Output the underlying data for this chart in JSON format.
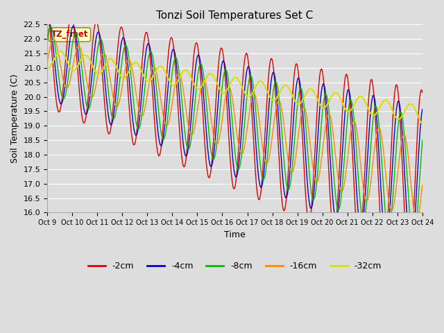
{
  "title": "Tonzi Soil Temperatures Set C",
  "xlabel": "Time",
  "ylabel": "Soil Temperature (C)",
  "ylim": [
    16.0,
    22.5
  ],
  "yticks": [
    16.0,
    16.5,
    17.0,
    17.5,
    18.0,
    18.5,
    19.0,
    19.5,
    20.0,
    20.5,
    21.0,
    21.5,
    22.0,
    22.5
  ],
  "series": {
    "-2cm": {
      "color": "#dd0000",
      "linewidth": 1.0
    },
    "-4cm": {
      "color": "#0000cc",
      "linewidth": 1.0
    },
    "-8cm": {
      "color": "#00bb00",
      "linewidth": 1.0
    },
    "-16cm": {
      "color": "#ff8800",
      "linewidth": 1.0
    },
    "-32cm": {
      "color": "#dddd00",
      "linewidth": 1.5
    }
  },
  "annotation_text": "TZ_fmet",
  "annotation_color": "#cc0000",
  "annotation_bg": "#ffffcc",
  "annotation_edge": "#999900",
  "plot_bg": "#dddddd",
  "grid_color": "#ffffff",
  "legend_labels": [
    "-2cm",
    "-4cm",
    "-8cm",
    "-16cm",
    "-32cm"
  ],
  "legend_colors": [
    "#dd0000",
    "#0000cc",
    "#00bb00",
    "#ff8800",
    "#dddd00"
  ],
  "n_points": 720,
  "xtick_labels": [
    "Oct 9",
    "Oct 10",
    "Oct 11",
    "Oct 12",
    "Oct 13",
    "Oct 14",
    "Oct 15",
    "Oct 16",
    "Oct 17",
    "Oct 18",
    "Oct 19",
    "Oct 20",
    "Oct 21",
    "Oct 22",
    "Oct 23",
    "Oct 24"
  ]
}
